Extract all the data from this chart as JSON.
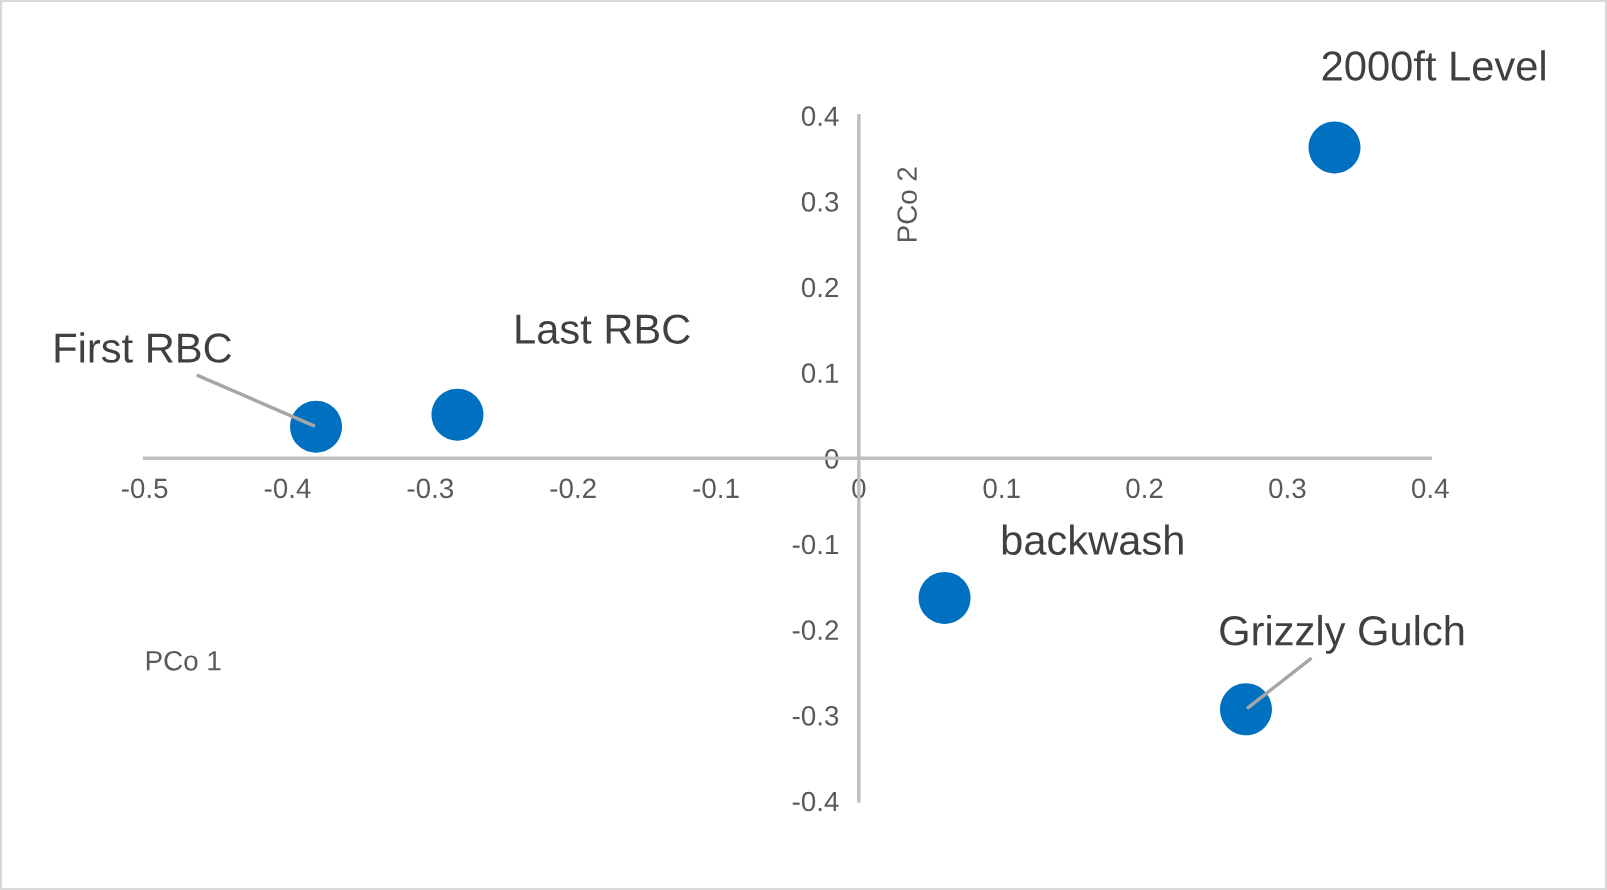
{
  "chart_data": {
    "type": "scatter",
    "xlabel": "PCo 1",
    "ylabel": "PCo 2",
    "x": [
      -0.38,
      -0.281,
      0.333,
      0.06,
      0.271
    ],
    "series": [
      {
        "color": "#0070c0",
        "values": [
          0.037,
          0.051,
          0.363,
          -0.163,
          -0.293
        ]
      }
    ],
    "xlim": [
      -0.5,
      0.4
    ],
    "ylim": [
      -0.4,
      0.4
    ],
    "xticks": [
      -0.5,
      -0.4,
      -0.3,
      -0.2,
      -0.1,
      0,
      0.1,
      0.2,
      0.3,
      0.4
    ],
    "yticks": [
      -0.4,
      -0.3,
      -0.2,
      -0.1,
      0,
      0.1,
      0.2,
      0.3,
      0.4
    ],
    "marker": "circle",
    "grid": false,
    "legend": false,
    "annotations": [
      {
        "text": "First RBC",
        "x": -0.38,
        "y": 0.037
      },
      {
        "text": "Last RBC",
        "x": -0.281,
        "y": 0.051
      },
      {
        "text": "2000ft Level",
        "x": 0.333,
        "y": 0.363
      },
      {
        "text": "backwash",
        "x": 0.06,
        "y": -0.163
      },
      {
        "text": "Grizzly Gulch",
        "x": 0.271,
        "y": -0.293
      }
    ]
  }
}
